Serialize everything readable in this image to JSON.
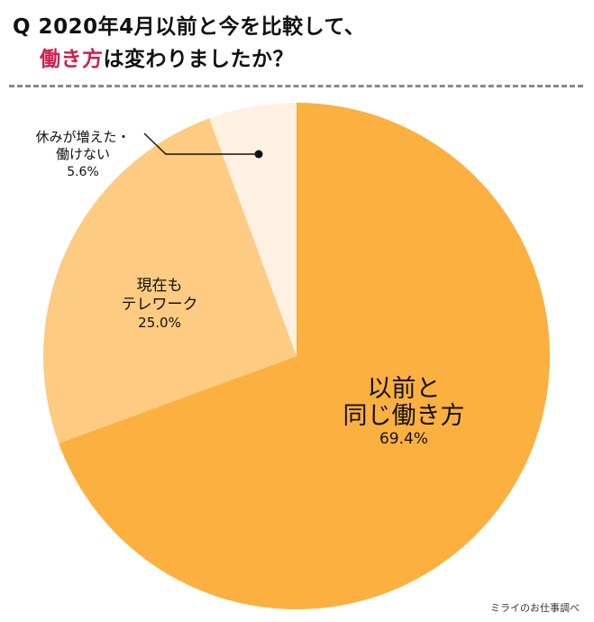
{
  "title": {
    "line1": "Q 2020年4月以前と今を比較して、",
    "line2_highlight": "働き方",
    "line2_rest": "は変わりましたか？"
  },
  "source": "ミライのお仕事調べ",
  "colors": {
    "title_highlight": "#cf1f4e",
    "slice_same": "#fbb040",
    "slice_remote": "#fdcb81",
    "slice_rest": "#fef1e2"
  },
  "chart_data": {
    "type": "pie",
    "start_angle": "12 o'clock",
    "direction": "clockwise",
    "slices": [
      {
        "label_lines": [
          "以前と",
          "同じ働き方"
        ],
        "value": 69.4,
        "value_label": "69.4%",
        "color": "#fbb040"
      },
      {
        "label_lines": [
          "現在も",
          "テレワーク"
        ],
        "value": 25.0,
        "value_label": "25.0%",
        "color": "#fdcb81"
      },
      {
        "label_lines": [
          "休みが増えた・",
          "働けない"
        ],
        "value": 5.6,
        "value_label": "5.6%",
        "color": "#fef1e2"
      }
    ]
  }
}
